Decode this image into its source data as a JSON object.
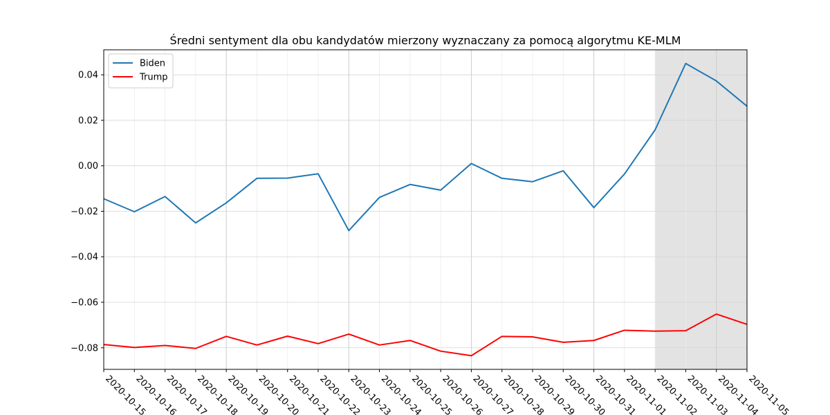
{
  "chart_data": {
    "type": "line",
    "title": "Średni sentyment dla obu kandydatów mierzony wyznaczany za pomocą algorytmu KE-MLM",
    "xlabel": "",
    "ylabel": "",
    "x": [
      "2020-10-15",
      "2020-10-16",
      "2020-10-17",
      "2020-10-18",
      "2020-10-19",
      "2020-10-20",
      "2020-10-21",
      "2020-10-22",
      "2020-10-23",
      "2020-10-24",
      "2020-10-25",
      "2020-10-26",
      "2020-10-27",
      "2020-10-28",
      "2020-10-29",
      "2020-10-30",
      "2020-10-31",
      "2020-11-01",
      "2020-11-02",
      "2020-11-03",
      "2020-11-04",
      "2020-11-05"
    ],
    "xtick_labels": [
      "2020-10-15",
      "2020-10-16",
      "2020-10-17",
      "2020-10-18",
      "2020-10-19",
      "2020-10-20",
      "2020-10-21",
      "2020-10-22",
      "2020-10-23",
      "2020-10-24",
      "2020-10-25",
      "2020-10-26",
      "2020-10-27",
      "2020-10-28",
      "2020-10-29",
      "2020-10-30",
      "2020-10-31",
      "2020-11-01",
      "2020-11-02",
      "2020-11-03",
      "2020-11-04",
      "2020-11-05"
    ],
    "ylim": [
      -0.0895,
      0.051
    ],
    "yticks": [
      -0.08,
      -0.06,
      -0.04,
      -0.02,
      0.0,
      0.02,
      0.04
    ],
    "ytick_labels": [
      "−0.08",
      "−0.06",
      "−0.04",
      "−0.02",
      "0.00",
      "0.02",
      "0.04"
    ],
    "major_x_every": 4,
    "grid": true,
    "legend_position": "top-left",
    "shaded_region": {
      "x_start": "2020-11-02",
      "x_end": "2020-11-05",
      "color": "#e3e3e3"
    },
    "series": [
      {
        "name": "Biden",
        "color": "#1f77b4",
        "values": [
          -0.0145,
          -0.0202,
          -0.0135,
          -0.0251,
          -0.0163,
          -0.0055,
          -0.0054,
          -0.0035,
          -0.0285,
          -0.0139,
          -0.0082,
          -0.0107,
          0.001,
          -0.0055,
          -0.007,
          -0.0022,
          -0.0184,
          -0.0036,
          0.0158,
          0.045,
          0.0373,
          0.0262
        ]
      },
      {
        "name": "Trump",
        "color": "#ff0000",
        "values": [
          -0.0786,
          -0.0799,
          -0.079,
          -0.0803,
          -0.075,
          -0.0788,
          -0.0749,
          -0.0782,
          -0.074,
          -0.0788,
          -0.0768,
          -0.0815,
          -0.0835,
          -0.075,
          -0.0752,
          -0.0776,
          -0.0768,
          -0.0723,
          -0.0727,
          -0.0725,
          -0.0652,
          -0.0697
        ]
      }
    ]
  }
}
